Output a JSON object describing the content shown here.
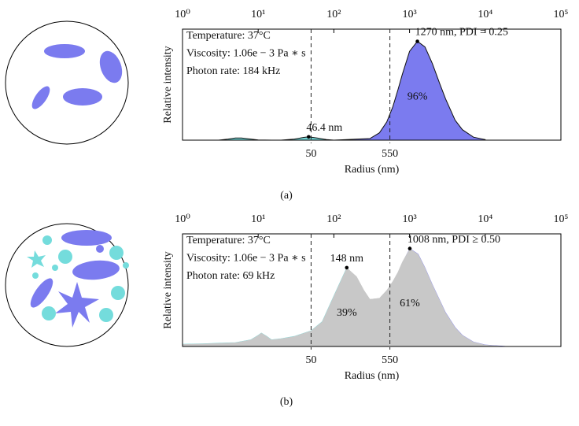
{
  "chart_data": [
    {
      "type": "area",
      "caption": "(a)",
      "xlabel": "Radius (nm)",
      "ylabel": "Relative intensity",
      "xscale": "log",
      "xlim": [
        1,
        100000
      ],
      "ylim": [
        0,
        1
      ],
      "xticks_top": [
        {
          "value": 1,
          "label": "10⁰"
        },
        {
          "value": 10,
          "label": "10¹"
        },
        {
          "value": 100,
          "label": "10²"
        },
        {
          "value": 1000,
          "label": "10³"
        },
        {
          "value": 10000,
          "label": "10⁴"
        },
        {
          "value": 100000,
          "label": "10⁵"
        }
      ],
      "xticks": [
        50,
        550
      ],
      "info": [
        "Temperature: 37°C",
        "Viscosity: 1.06e − 3 Pa ∗ s",
        "Photon rate: 184 kHz"
      ],
      "x": [
        3,
        4,
        5,
        6,
        8,
        10,
        15,
        20,
        30,
        40,
        46.4,
        60,
        80,
        100,
        300,
        400,
        500,
        600,
        700,
        800,
        1000,
        1270,
        1600,
        2000,
        2500,
        3000,
        4000,
        5000,
        7000,
        10000
      ],
      "series": [
        {
          "color": "#74d6d6",
          "values": [
            0,
            0.01,
            0.02,
            0.02,
            0.01,
            0.002,
            0,
            0,
            0.01,
            0.025,
            0.03,
            0.02,
            0.005,
            0,
            0,
            0,
            0,
            0,
            0,
            0,
            0,
            0,
            0,
            0,
            0,
            0,
            0,
            0,
            0,
            0
          ]
        },
        {
          "color": "#7b7bef",
          "label": "96%",
          "values": [
            0,
            0,
            0,
            0,
            0,
            0,
            0,
            0,
            0,
            0,
            0,
            0,
            0,
            0,
            0.015,
            0.066,
            0.164,
            0.3,
            0.45,
            0.59,
            0.8,
            0.89,
            0.84,
            0.69,
            0.51,
            0.37,
            0.18,
            0.094,
            0.027,
            0.005
          ]
        }
      ],
      "peaks": [
        {
          "label": "46.4 nm",
          "x": 46.4,
          "value": 0.03
        },
        {
          "label": "1270 nm, PDI = 0.25",
          "x": 1270,
          "value": 0.89
        }
      ]
    },
    {
      "type": "area",
      "caption": "(b)",
      "xlabel": "Radius (nm)",
      "ylabel": "Relative intensity",
      "xscale": "log",
      "xlim": [
        1,
        100000
      ],
      "ylim": [
        0,
        1
      ],
      "xticks_top": [
        {
          "value": 1,
          "label": "10⁰"
        },
        {
          "value": 10,
          "label": "10¹"
        },
        {
          "value": 100,
          "label": "10²"
        },
        {
          "value": 1000,
          "label": "10³"
        },
        {
          "value": 10000,
          "label": "10⁴"
        },
        {
          "value": 100000,
          "label": "10⁵"
        }
      ],
      "xticks": [
        50,
        550
      ],
      "info": [
        "Temperature: 37°C",
        "Viscosity: 1.06e − 3 Pa ∗ s",
        "Photon rate: 69 kHz"
      ],
      "x": [
        1,
        2,
        3,
        5,
        8,
        10,
        11,
        13,
        15,
        20,
        30,
        50,
        70,
        100,
        148,
        200,
        250,
        300,
        400,
        500,
        600,
        700,
        800,
        1008,
        1300,
        1600,
        2000,
        3000,
        4000,
        5000,
        7000,
        10000,
        20000
      ],
      "envelope": {
        "color": "#c8c8c8",
        "values": [
          0.02,
          0.025,
          0.03,
          0.035,
          0.06,
          0.1,
          0.12,
          0.09,
          0.06,
          0.07,
          0.09,
          0.14,
          0.22,
          0.45,
          0.7,
          0.62,
          0.5,
          0.42,
          0.43,
          0.5,
          0.58,
          0.66,
          0.75,
          0.87,
          0.82,
          0.7,
          0.55,
          0.3,
          0.17,
          0.1,
          0.04,
          0.015,
          0
        ]
      },
      "series": [
        {
          "color": "#74dcdc",
          "label": "39%",
          "values": [
            0.02,
            0.025,
            0.03,
            0.035,
            0.06,
            0.1,
            0.12,
            0.09,
            0.06,
            0.07,
            0.09,
            0.14,
            0.22,
            0.45,
            0.7,
            0.55,
            0.4,
            0.25,
            0.1,
            0.04,
            0.015,
            0,
            0,
            0,
            0,
            0,
            0,
            0,
            0,
            0,
            0,
            0,
            0
          ]
        },
        {
          "color": "#7b7bef",
          "label": "61%",
          "values": [
            0,
            0,
            0,
            0,
            0,
            0,
            0,
            0,
            0,
            0,
            0,
            0,
            0,
            0,
            0,
            0.02,
            0.05,
            0.1,
            0.22,
            0.38,
            0.52,
            0.64,
            0.74,
            0.87,
            0.82,
            0.7,
            0.55,
            0.3,
            0.17,
            0.1,
            0.04,
            0.015,
            0
          ]
        }
      ],
      "peaks": [
        {
          "label": "148 nm",
          "x": 148,
          "value": 0.7,
          "align": "middle"
        },
        {
          "label": "1008 nm, PDI ≥ 0.50",
          "x": 1008,
          "value": 0.87
        }
      ]
    }
  ]
}
